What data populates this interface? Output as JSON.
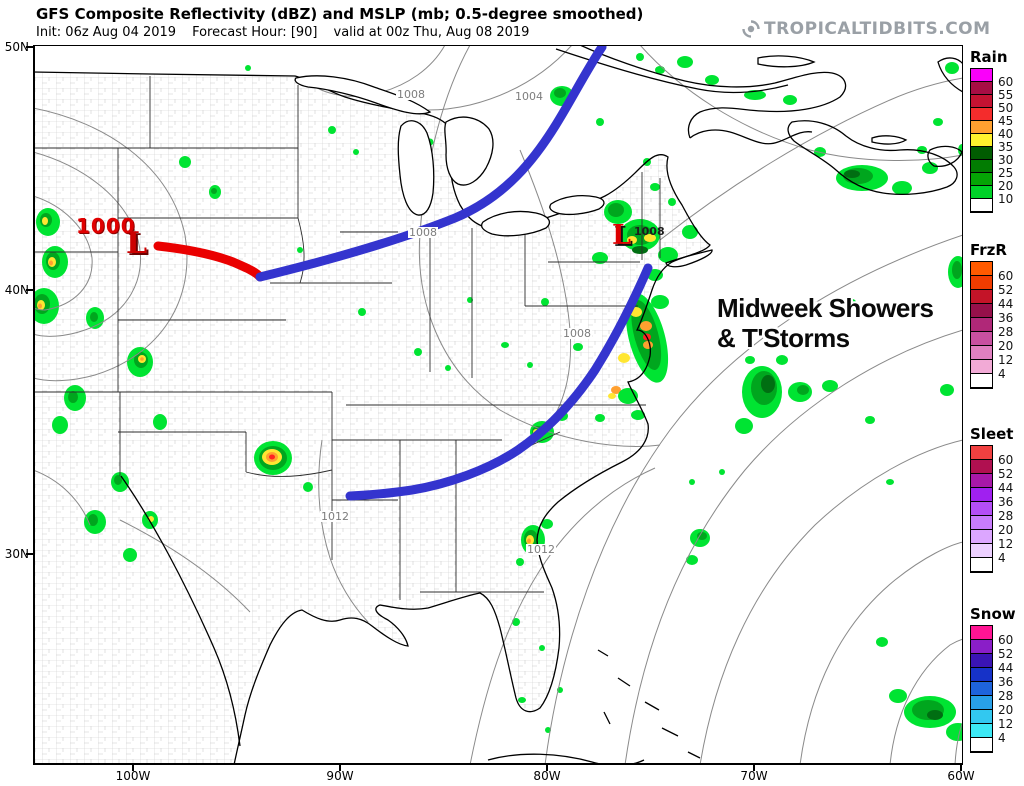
{
  "header": {
    "title": "GFS Composite Reflectivity (dBZ) and MSLP (mb; 0.5-degree smoothed)",
    "init": "Init: 06z Aug 04 2019",
    "forecast_hour": "Forecast Hour: [90]",
    "valid": "valid at 00z Thu, Aug 08 2019",
    "logo": "TROPICALTIDBITS.COM"
  },
  "axes": {
    "lat": [
      "50N",
      "40N",
      "30N"
    ],
    "lon": [
      "100W",
      "90W",
      "80W",
      "70W",
      "60W"
    ]
  },
  "map": {
    "pressure_labels": [
      "1008",
      "1004",
      "1008",
      "1008",
      "1012",
      "1012"
    ],
    "west_low": {
      "pressure": "1000",
      "symbol": "L"
    },
    "northeast_low": {
      "pressure": "1008",
      "symbol": "L"
    },
    "annotation_line1": "Midweek Showers",
    "annotation_line2": "& T'Storms"
  },
  "legend": {
    "scales": [
      {
        "name": "Rain",
        "labels": [
          60,
          55,
          50,
          45,
          40,
          35,
          30,
          25,
          20,
          10
        ],
        "colors": [
          "#FA00FA",
          "#A80D44",
          "#C41232",
          "#F42C2C",
          "#FFA030",
          "#FFF22E",
          "#015C01",
          "#027C02",
          "#05A405",
          "#00D228",
          "#FFFFFF"
        ]
      },
      {
        "name": "FrzR",
        "labels": [
          60,
          52,
          44,
          36,
          28,
          20,
          12,
          4
        ],
        "colors": [
          "#FF5A00",
          "#F03C00",
          "#C41428",
          "#96104A",
          "#B02878",
          "#C850A0",
          "#E080C0",
          "#F2AAD6",
          "#FFFFFF"
        ]
      },
      {
        "name": "Sleet",
        "labels": [
          60,
          52,
          44,
          36,
          28,
          20,
          12,
          4
        ],
        "colors": [
          "#F04040",
          "#B01050",
          "#A818A8",
          "#A020F0",
          "#B44EF6",
          "#C87CFC",
          "#DCA6FF",
          "#ECD0FF",
          "#FFFFFF"
        ]
      },
      {
        "name": "Snow",
        "labels": [
          60,
          52,
          44,
          36,
          28,
          20,
          12,
          4
        ],
        "colors": [
          "#FF1493",
          "#8A1EC8",
          "#3A14B4",
          "#1632C8",
          "#1E64DC",
          "#28A0E8",
          "#32C8F0",
          "#3CE8F5",
          "#FFFFFF"
        ]
      }
    ]
  },
  "colors": {
    "front_red": "#EA0000",
    "trough_blue": "#3434CE",
    "precip_g1": "#00E432",
    "precip_g2": "#00A61E",
    "precip_g3": "#006E12",
    "precip_yellow": "#FFE632",
    "precip_orange": "#FFA030",
    "precip_red": "#FF2222",
    "contour_gray": "#8A8A8A",
    "county_gray": "#CDCDCD",
    "state_line": "#2E2E2E",
    "coast_black": "#000000",
    "logo_gray": "#9AA0A6",
    "low_label_red": "#E00000"
  }
}
